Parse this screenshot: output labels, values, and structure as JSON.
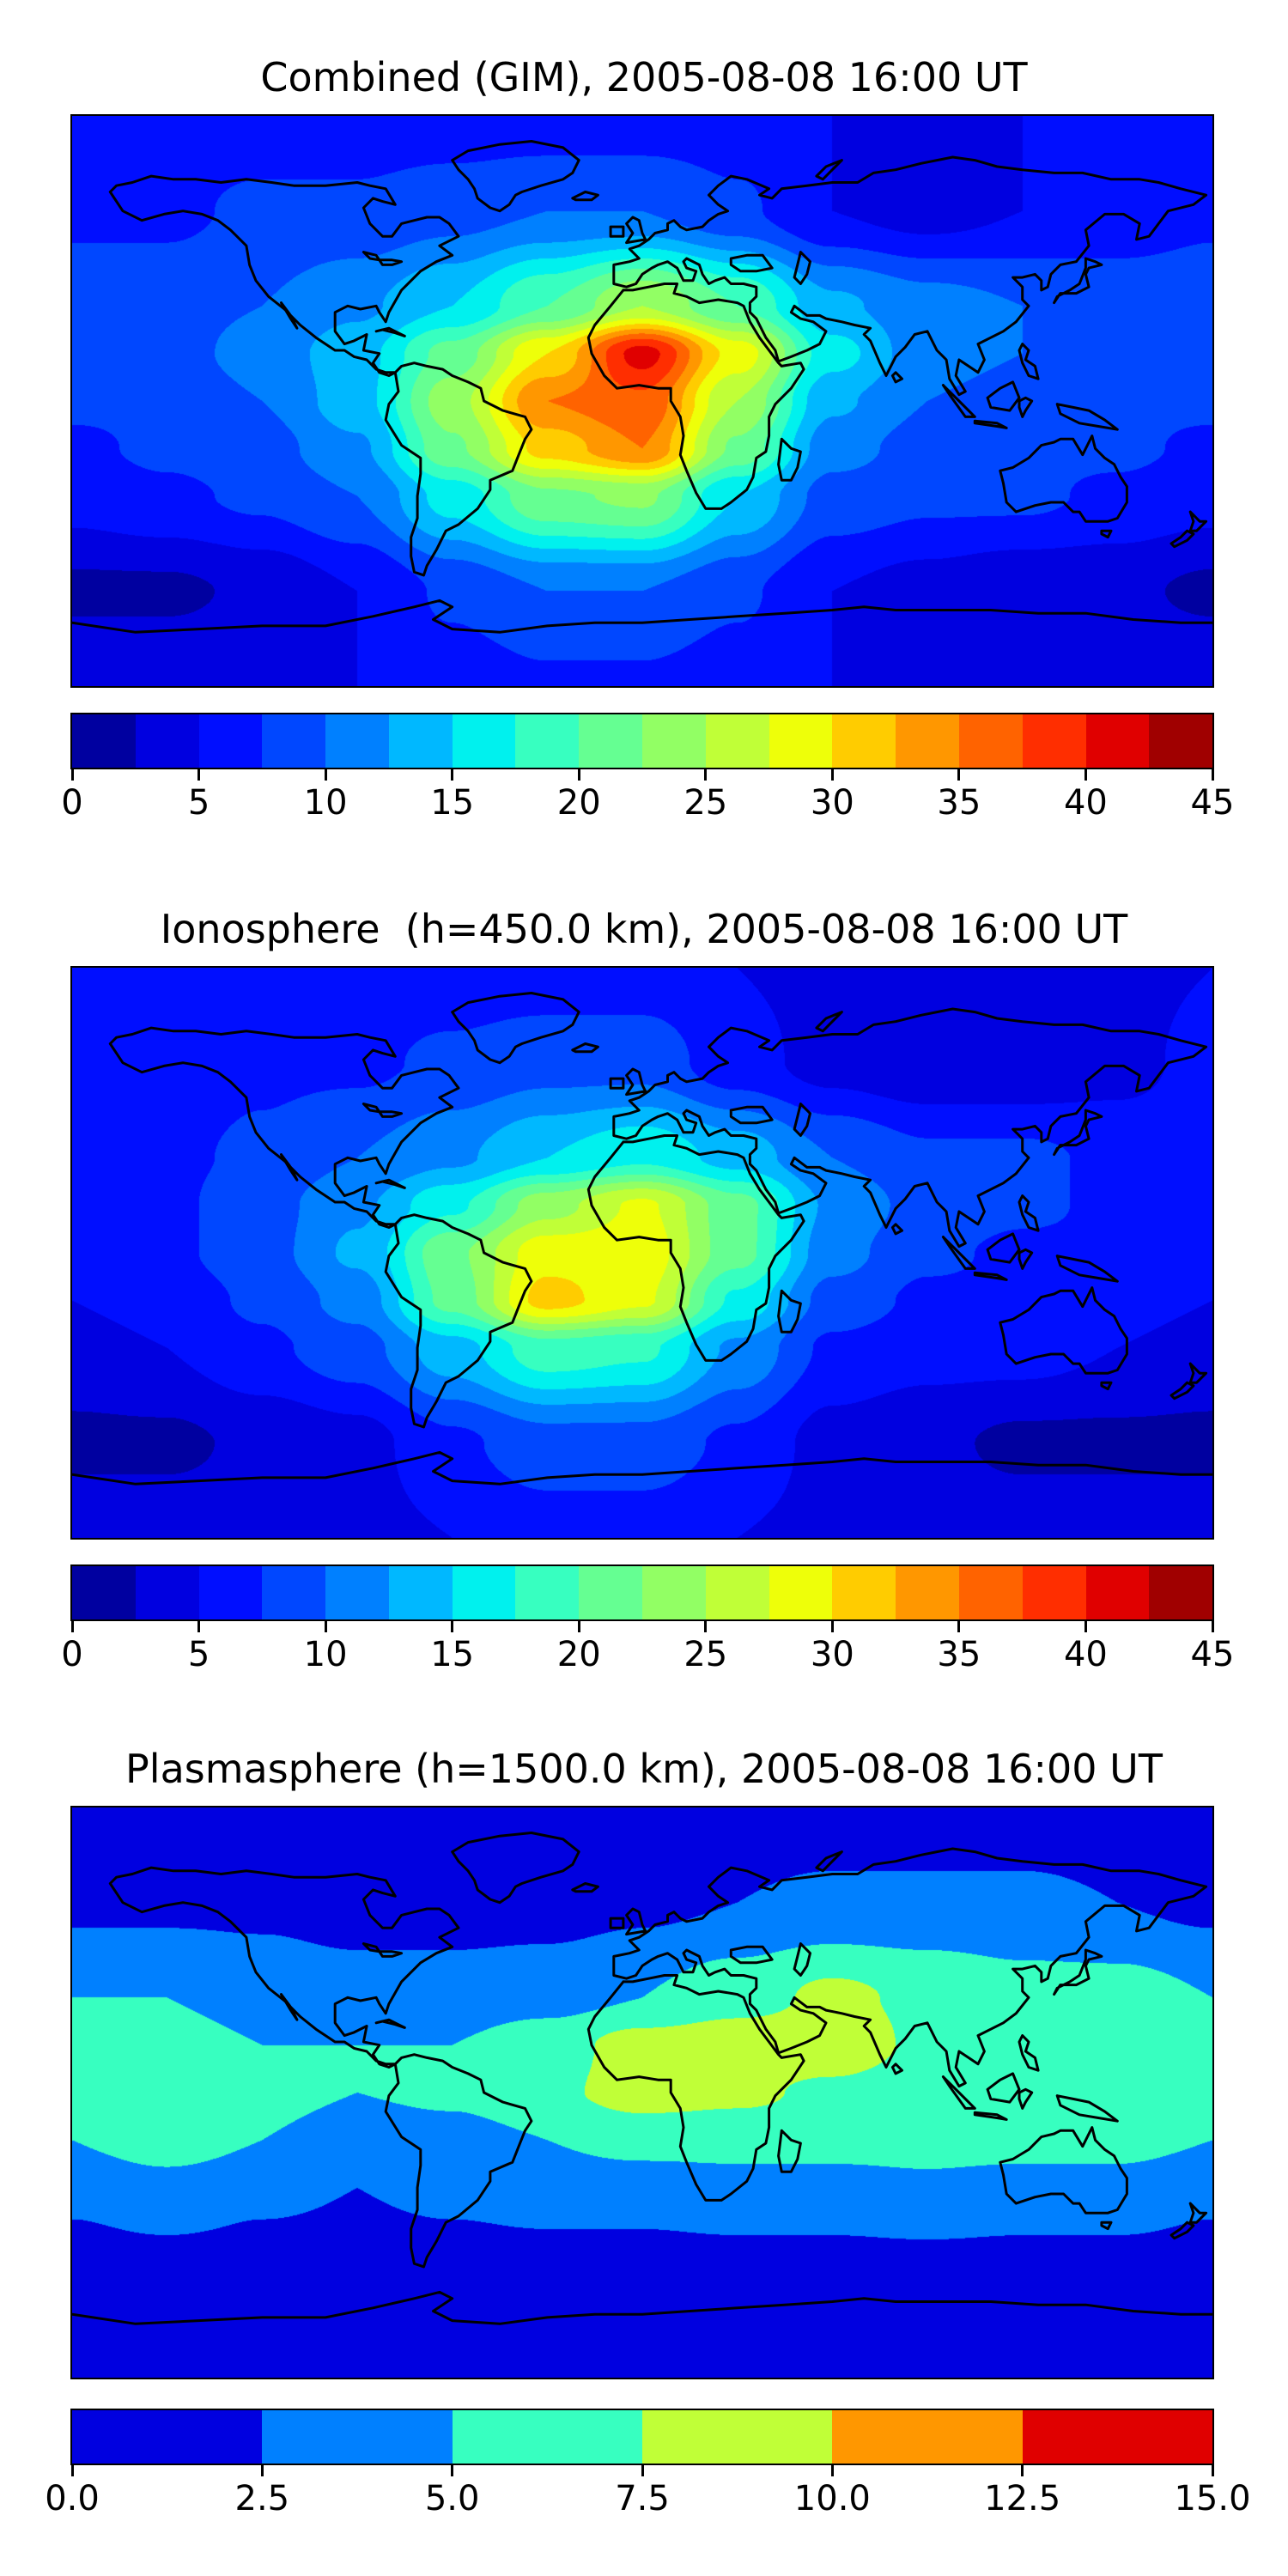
{
  "figure": {
    "background": "#ffffff",
    "text_color": "#000000",
    "coastline_color": "#000000",
    "description": "Three stacked global TEC maps (filled contours, jet colormap) with horizontal colorbars"
  },
  "chart_data": [
    {
      "type": "heatmap",
      "subtype": "filled-contour-map",
      "projection": "equirectangular",
      "title": "Combined (GIM), 2005-08-08 16:00 UT",
      "colormap": "jet",
      "vmin": 0,
      "vmax": 45,
      "level_step": 2.5,
      "n_levels": 18,
      "colorbar_ticks": [
        "0",
        "5",
        "10",
        "15",
        "20",
        "25",
        "30",
        "35",
        "40",
        "45"
      ],
      "colorbar_tick_values": [
        0,
        5,
        10,
        15,
        20,
        25,
        30,
        35,
        40,
        45
      ],
      "palette": [
        "#0000A0",
        "#0000E0",
        "#000EFF",
        "#0047FF",
        "#0080FF",
        "#00B8FF",
        "#00F1EE",
        "#37FFC0",
        "#65FF92",
        "#92FF64",
        "#C0FF37",
        "#EEFF09",
        "#FFCC00",
        "#FF9700",
        "#FF6300",
        "#FF2E00",
        "#E00000",
        "#A00000"
      ],
      "max_value_approx": 41,
      "max_location_lonlat": [
        5,
        14
      ],
      "grid": {
        "lons": [
          -180,
          -150,
          -120,
          -90,
          -60,
          -30,
          0,
          30,
          60,
          90,
          120,
          150,
          180
        ],
        "lats": [
          90,
          60,
          30,
          15,
          0,
          -15,
          -30,
          -60,
          -90
        ],
        "values": [
          [
            6,
            6,
            6,
            6,
            6,
            6,
            6,
            6,
            5,
            4,
            5,
            6,
            6
          ],
          [
            7,
            7,
            8,
            8,
            9,
            10,
            10,
            8,
            5,
            4,
            5,
            6,
            7
          ],
          [
            9,
            9,
            10,
            12,
            15,
            20,
            25,
            20,
            13,
            11,
            10,
            9,
            9
          ],
          [
            8,
            9,
            11,
            14,
            21,
            30,
            41,
            29,
            16,
            11,
            10,
            9,
            8
          ],
          [
            8,
            8,
            10,
            14,
            24,
            35,
            37,
            25,
            13,
            10,
            9,
            8,
            8
          ],
          [
            7,
            8,
            9,
            12,
            22,
            31,
            35,
            22,
            11,
            9,
            8,
            8,
            7
          ],
          [
            6,
            7,
            8,
            10,
            16,
            22,
            23,
            15,
            9,
            8,
            8,
            7,
            6
          ],
          [
            2,
            2,
            3,
            5,
            8,
            10,
            10,
            8,
            5,
            4,
            3,
            3,
            2
          ],
          [
            5,
            5,
            5,
            5,
            6,
            7,
            7,
            6,
            5,
            5,
            5,
            5,
            5
          ]
        ]
      }
    },
    {
      "type": "heatmap",
      "subtype": "filled-contour-map",
      "projection": "equirectangular",
      "title": "Ionosphere  (h=450.0 km), 2005-08-08 16:00 UT",
      "colormap": "jet",
      "vmin": 0,
      "vmax": 45,
      "level_step": 2.5,
      "n_levels": 18,
      "colorbar_ticks": [
        "0",
        "5",
        "10",
        "15",
        "20",
        "25",
        "30",
        "35",
        "40",
        "45"
      ],
      "colorbar_tick_values": [
        0,
        5,
        10,
        15,
        20,
        25,
        30,
        35,
        40,
        45
      ],
      "palette": [
        "#0000A0",
        "#0000E0",
        "#000EFF",
        "#0047FF",
        "#0080FF",
        "#00B8FF",
        "#00F1EE",
        "#37FFC0",
        "#65FF92",
        "#92FF64",
        "#C0FF37",
        "#EEFF09",
        "#FFCC00",
        "#FF9700",
        "#FF6300",
        "#FF2E00",
        "#E00000",
        "#A00000"
      ],
      "max_value_approx": 31,
      "max_location_lonlat": [
        -15,
        -10
      ],
      "grid": {
        "lons": [
          -180,
          -150,
          -120,
          -90,
          -60,
          -30,
          0,
          30,
          60,
          90,
          120,
          150,
          180
        ],
        "lats": [
          90,
          60,
          30,
          15,
          0,
          -15,
          -30,
          -60,
          -90
        ],
        "values": [
          [
            5,
            5,
            5,
            6,
            6,
            6,
            6,
            5,
            4,
            3,
            3,
            4,
            5
          ],
          [
            6,
            6,
            7,
            7,
            8,
            9,
            9,
            6,
            4,
            3,
            3,
            4,
            6
          ],
          [
            7,
            7,
            8,
            10,
            12,
            15,
            17,
            14,
            10,
            8,
            8,
            7,
            7
          ],
          [
            7,
            7,
            9,
            12,
            17,
            24,
            28,
            21,
            12,
            9,
            8,
            7,
            7
          ],
          [
            6,
            7,
            9,
            13,
            22,
            29,
            29,
            21,
            11,
            8,
            7,
            7,
            6
          ],
          [
            5,
            6,
            8,
            11,
            21,
            31,
            28,
            17,
            9,
            7,
            7,
            6,
            5
          ],
          [
            4,
            5,
            7,
            9,
            14,
            19,
            18,
            12,
            7,
            6,
            6,
            5,
            4
          ],
          [
            2,
            2,
            3,
            4,
            7,
            9,
            9,
            7,
            4,
            3,
            2,
            2,
            2
          ],
          [
            4,
            4,
            4,
            4,
            5,
            6,
            6,
            5,
            4,
            4,
            4,
            4,
            4
          ]
        ]
      }
    },
    {
      "type": "heatmap",
      "subtype": "filled-contour-map",
      "projection": "equirectangular",
      "title": "Plasmasphere (h=1500.0 km), 2005-08-08 16:00 UT",
      "colormap": "jet",
      "vmin": 0,
      "vmax": 15,
      "level_step": 2.5,
      "n_levels": 6,
      "colorbar_ticks": [
        "0.0",
        "2.5",
        "5.0",
        "7.5",
        "10.0",
        "12.5",
        "15.0"
      ],
      "colorbar_tick_values": [
        0,
        2.5,
        5,
        7.5,
        10,
        12.5,
        15
      ],
      "palette": [
        "#0000E0",
        "#0080FF",
        "#37FFC0",
        "#C0FF37",
        "#FF9700",
        "#E00000"
      ],
      "max_value_approx": 9,
      "max_location_lonlat": [
        30,
        17
      ],
      "grid": {
        "lons": [
          -180,
          -150,
          -120,
          -90,
          -60,
          -30,
          0,
          30,
          60,
          90,
          120,
          150,
          180
        ],
        "lats": [
          90,
          60,
          30,
          15,
          0,
          -15,
          -30,
          -60,
          -90
        ],
        "values": [
          [
            1,
            1,
            1,
            1,
            1,
            1,
            1,
            1,
            1,
            1,
            1,
            1,
            1
          ],
          [
            2,
            2,
            2,
            1.5,
            1.5,
            1.5,
            2,
            2.5,
            3,
            3,
            3,
            2.5,
            2
          ],
          [
            5,
            5,
            4,
            3.5,
            3.5,
            4,
            5,
            6.5,
            8,
            7,
            6,
            6,
            5
          ],
          [
            6,
            6,
            5,
            5,
            5,
            6.5,
            8.5,
            9,
            9,
            7,
            6,
            6.5,
            6
          ],
          [
            6,
            6.5,
            6,
            5,
            5.5,
            7,
            8.5,
            8,
            7,
            6,
            6,
            6.5,
            6
          ],
          [
            5,
            6.5,
            5,
            3.5,
            4,
            5,
            6,
            6,
            6,
            6,
            6,
            6,
            5
          ],
          [
            3,
            4,
            3,
            2.5,
            3,
            3.5,
            3.5,
            4,
            4,
            4.5,
            4,
            4,
            3
          ],
          [
            1,
            1,
            1,
            1,
            1,
            1,
            1,
            1,
            1,
            1,
            1,
            1,
            1
          ],
          [
            1,
            1,
            1,
            1,
            1,
            1,
            1,
            1,
            1,
            1,
            1,
            1,
            1
          ]
        ]
      }
    }
  ]
}
